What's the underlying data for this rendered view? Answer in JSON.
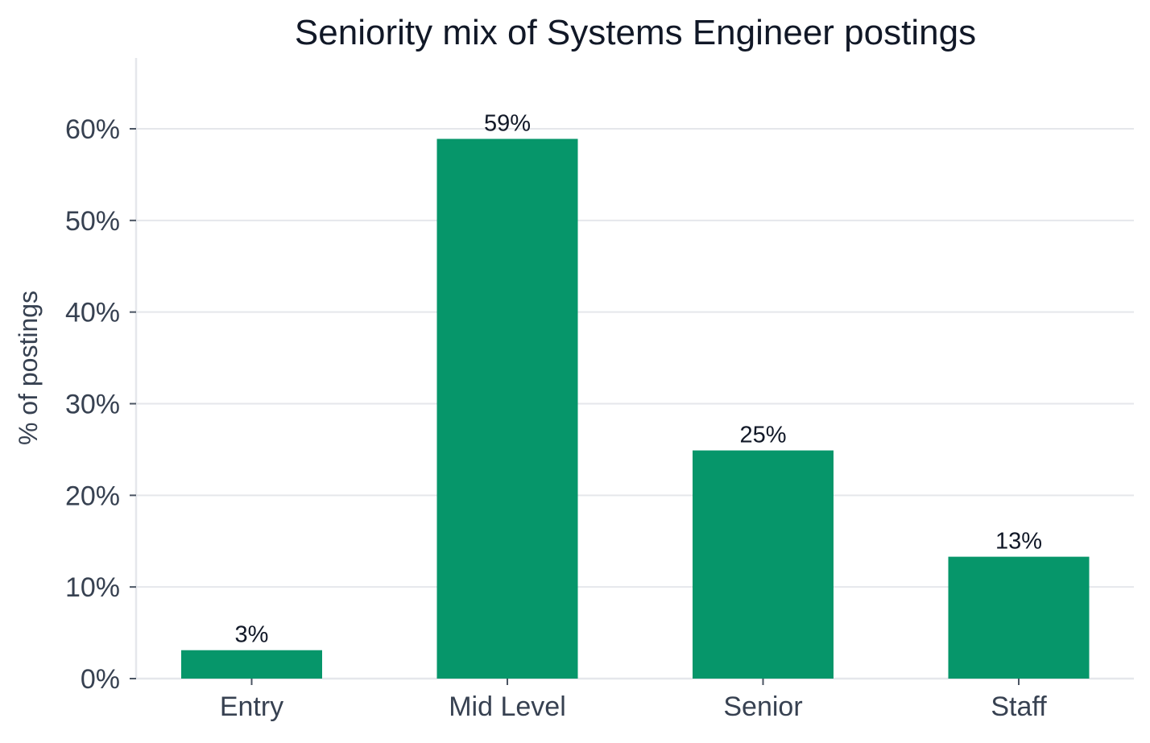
{
  "chart_data": {
    "type": "bar",
    "title": "Seniority mix of Systems Engineer postings",
    "xlabel": "",
    "ylabel": "% of postings",
    "categories": [
      "Entry",
      "Mid Level",
      "Senior",
      "Staff"
    ],
    "values": [
      3.1,
      58.9,
      24.9,
      13.3
    ],
    "value_labels": [
      "3%",
      "59%",
      "25%",
      "13%"
    ],
    "ylim": [
      0,
      67.5
    ],
    "yticks": [
      0,
      10,
      20,
      30,
      40,
      50,
      60
    ],
    "ytick_labels": [
      "0%",
      "10%",
      "20%",
      "30%",
      "40%",
      "50%",
      "60%"
    ],
    "grid": "horizontal",
    "colors": {
      "bar": "#06966a"
    }
  }
}
